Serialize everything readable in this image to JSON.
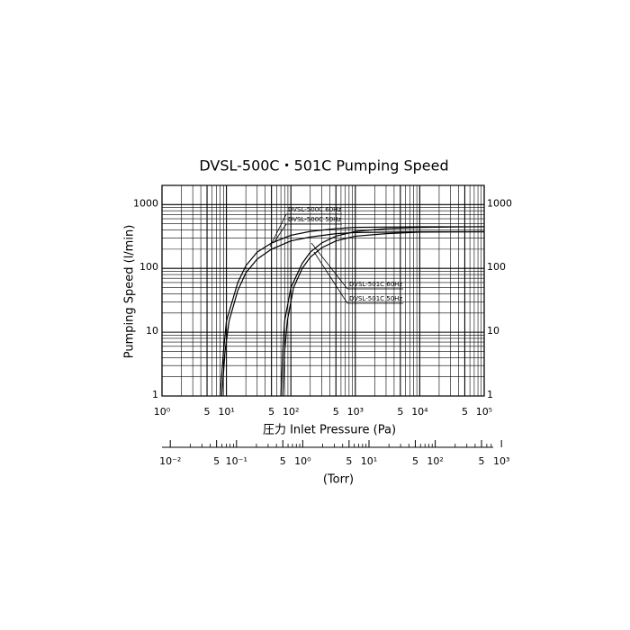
{
  "chart_data": {
    "type": "line",
    "title": "DVSL-500C・501C Pumping Speed",
    "ylabel": "Pumping Speed  (l/min)",
    "xlabel": "圧力  Inlet Pressure  (Pa)",
    "x2label": "(Torr)",
    "log_x": true,
    "log_y": true,
    "grid": true,
    "xlim": [
      1,
      100000
    ],
    "ylim": [
      1,
      2000
    ],
    "x2lim": [
      0.0075,
      750
    ],
    "xticks": [
      {
        "value": 1,
        "label": "10⁰"
      },
      5,
      {
        "value": 10,
        "label": "10¹"
      },
      {
        "value": 50,
        "label": "5"
      },
      {
        "value": 100,
        "label": "10²"
      },
      {
        "value": 500,
        "label": "5"
      },
      {
        "value": 1000,
        "label": "10³"
      },
      {
        "value": 5000,
        "label": "5"
      },
      {
        "value": 10000,
        "label": "10⁴"
      },
      {
        "value": 50000,
        "label": "5"
      },
      {
        "value": 100000,
        "label": "10⁵"
      }
    ],
    "xminor": [
      2,
      3,
      4,
      6,
      7,
      8,
      9,
      20,
      30,
      40,
      60,
      70,
      80,
      90,
      200,
      300,
      400,
      600,
      700,
      800,
      900,
      2000,
      3000,
      4000,
      6000,
      7000,
      8000,
      9000,
      20000,
      30000,
      40000,
      60000,
      70000,
      80000,
      90000
    ],
    "yticks": [
      1,
      10,
      100,
      1000
    ],
    "yminor": [
      2,
      3,
      4,
      5,
      6,
      7,
      8,
      9,
      20,
      30,
      40,
      50,
      60,
      70,
      80,
      90,
      200,
      300,
      400,
      500,
      600,
      700,
      800,
      900,
      2000
    ],
    "x2ticks": [
      {
        "value": 0.01,
        "label": "10⁻²"
      },
      {
        "value": 0.05,
        "label": "5"
      },
      {
        "value": 0.1,
        "label": "10⁻¹"
      },
      {
        "value": 0.5,
        "label": "5"
      },
      {
        "value": 1,
        "label": "10⁰"
      },
      5,
      {
        "value": 10,
        "label": "10¹"
      },
      {
        "value": 50,
        "label": "5"
      },
      {
        "value": 100,
        "label": "10²"
      },
      {
        "value": 500,
        "label": "5"
      },
      {
        "value": 1000,
        "label": "10³"
      }
    ],
    "x2minor": [
      0.02,
      0.03,
      0.04,
      0.06,
      0.07,
      0.08,
      0.09,
      0.2,
      0.3,
      0.4,
      0.6,
      0.7,
      0.8,
      0.9,
      2,
      3,
      4,
      6,
      7,
      8,
      9,
      20,
      30,
      40,
      60,
      70,
      80,
      90,
      200,
      300,
      400,
      600,
      700
    ],
    "series": [
      {
        "name": "DVSL-500C 60Hz",
        "color": "#000000",
        "x": [
          8,
          9,
          10,
          15,
          20,
          30,
          50,
          100,
          200,
          500,
          1000,
          10000,
          100000
        ],
        "values": [
          1,
          5,
          15,
          60,
          110,
          180,
          250,
          330,
          380,
          420,
          440,
          450,
          450
        ]
      },
      {
        "name": "DVSL-500C 50Hz",
        "color": "#000000",
        "x": [
          8.5,
          9.5,
          11,
          15,
          20,
          30,
          50,
          100,
          200,
          500,
          1000,
          10000,
          100000
        ],
        "values": [
          1,
          5,
          15,
          45,
          85,
          140,
          200,
          270,
          310,
          350,
          365,
          375,
          375
        ]
      },
      {
        "name": "DVSL-501C 60Hz",
        "color": "#000000",
        "x": [
          70,
          75,
          80,
          100,
          150,
          200,
          300,
          500,
          1000,
          3000,
          10000,
          100000
        ],
        "values": [
          1,
          5,
          15,
          50,
          120,
          180,
          250,
          320,
          380,
          420,
          440,
          450
        ]
      },
      {
        "name": "DVSL-501C 50Hz",
        "color": "#000000",
        "x": [
          75,
          80,
          88,
          110,
          150,
          200,
          300,
          500,
          1000,
          3000,
          10000,
          100000
        ],
        "values": [
          1,
          5,
          15,
          50,
          100,
          150,
          210,
          270,
          320,
          350,
          370,
          375
        ]
      }
    ]
  }
}
